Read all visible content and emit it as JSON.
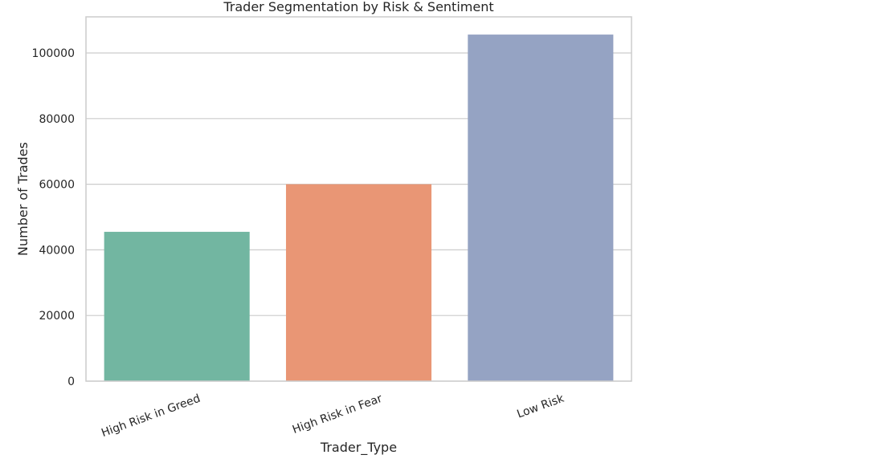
{
  "chart_data": {
    "type": "bar",
    "title": "Trader Segmentation by Risk & Sentiment",
    "xlabel": "Trader_Type",
    "ylabel": "Number of Trades",
    "categories": [
      "High Risk in Greed",
      "High Risk in Fear",
      "Low Risk"
    ],
    "values": [
      45500,
      60000,
      105600
    ],
    "colors": [
      "#72b6a1",
      "#e99675",
      "#95a3c3"
    ],
    "ylim": [
      0,
      111000
    ],
    "yticks": [
      0,
      20000,
      40000,
      60000,
      80000,
      100000
    ],
    "ytick_labels": [
      "0",
      "20000",
      "40000",
      "60000",
      "80000",
      "100000"
    ],
    "grid": true,
    "legend": "none"
  }
}
